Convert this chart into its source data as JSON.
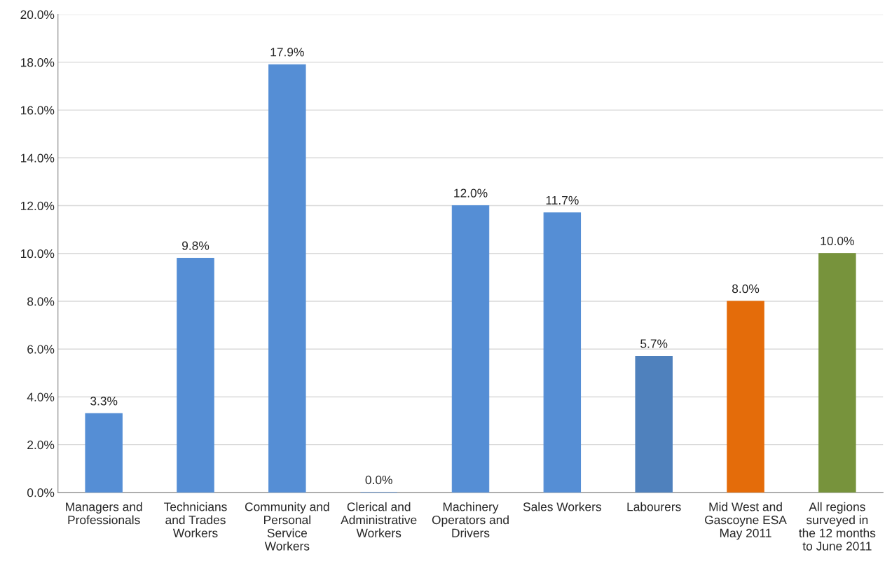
{
  "chart_data": {
    "type": "bar",
    "categories": [
      "Managers and Professionals",
      "Technicians and Trades Workers",
      "Community and Personal Service Workers",
      "Clerical and Administrative Workers",
      "Machinery Operators and Drivers",
      "Sales Workers",
      "Labourers",
      "Mid West and Gascoyne ESA May 2011",
      "All regions surveyed in the 12 months to June 2011"
    ],
    "values": [
      3.3,
      9.8,
      17.9,
      0.0,
      12.0,
      11.7,
      5.7,
      8.0,
      10.0
    ],
    "colors": [
      "#558ed5",
      "#558ed5",
      "#558ed5",
      "#558ed5",
      "#558ed5",
      "#558ed5",
      "#4f81bd",
      "#e46c0a",
      "#77933c"
    ],
    "value_labels": [
      "3.3%",
      "9.8%",
      "17.9%",
      "0.0%",
      "12.0%",
      "11.7%",
      "5.7%",
      "8.0%",
      "10.0%"
    ],
    "ylim": [
      0,
      20
    ],
    "yticks": [
      {
        "value": 0,
        "label": "0.0%"
      },
      {
        "value": 2,
        "label": "2.0%"
      },
      {
        "value": 4,
        "label": "4.0%"
      },
      {
        "value": 6,
        "label": "6.0%"
      },
      {
        "value": 8,
        "label": "8.0%"
      },
      {
        "value": 10,
        "label": "10.0%"
      },
      {
        "value": 12,
        "label": "12.0%"
      },
      {
        "value": 14,
        "label": "14.0%"
      },
      {
        "value": 16,
        "label": "16.0%"
      },
      {
        "value": 18,
        "label": "18.0%"
      },
      {
        "value": 20,
        "label": "20.0%"
      }
    ],
    "grid": "y"
  }
}
